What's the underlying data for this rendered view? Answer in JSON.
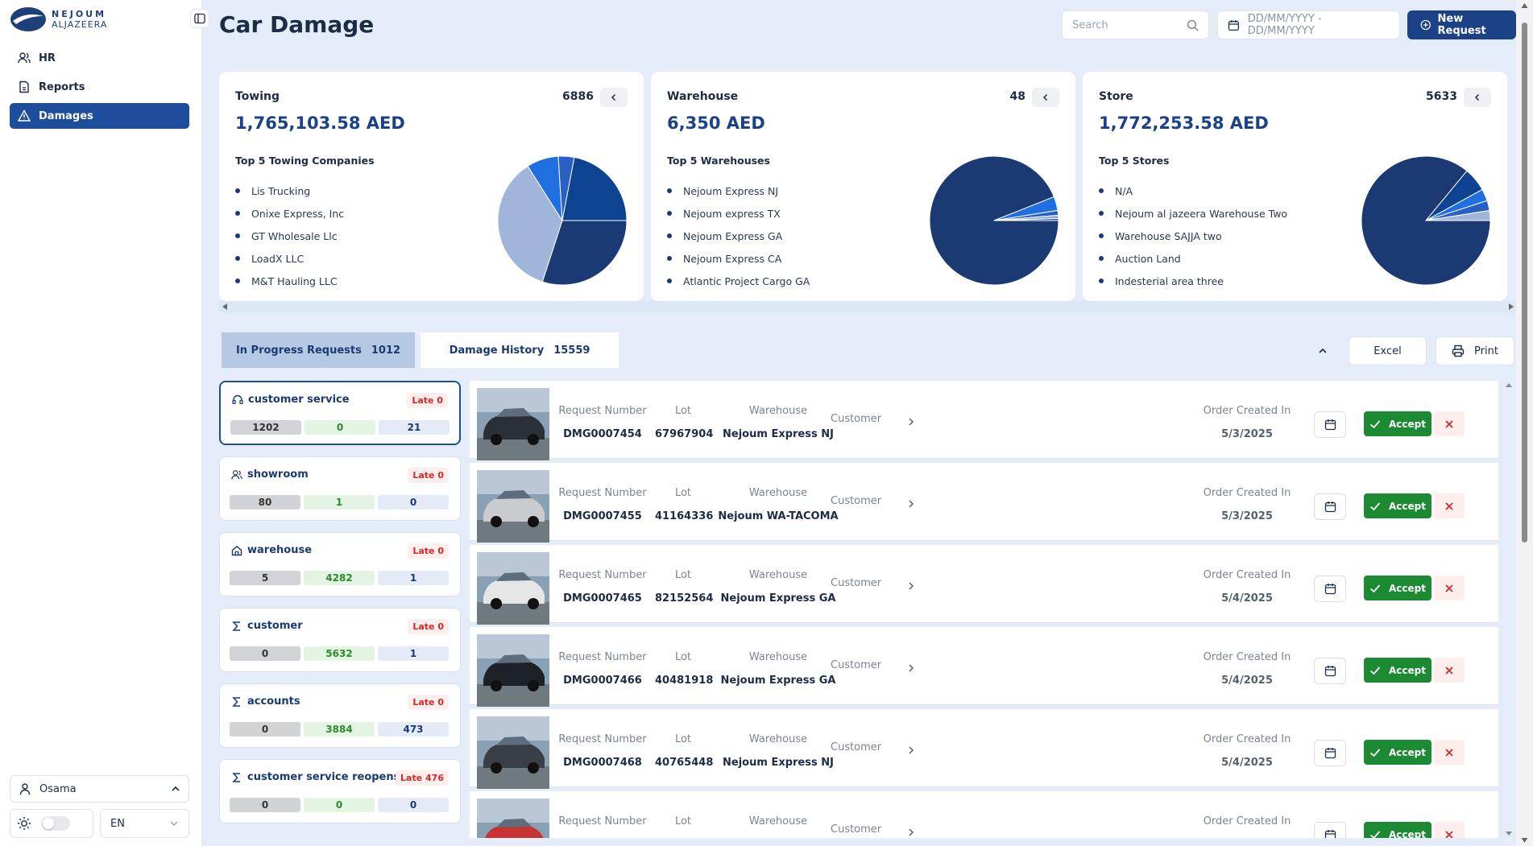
{
  "brand": {
    "line1": "NEJOUM",
    "line2": "ALJAZEERA"
  },
  "nav": [
    {
      "label": "HR",
      "icon": "users-icon"
    },
    {
      "label": "Reports",
      "icon": "report-icon"
    },
    {
      "label": "Damages",
      "icon": "warning-icon",
      "active": true
    }
  ],
  "user": {
    "name": "Osama"
  },
  "language": "EN",
  "header": {
    "title": "Car Damage",
    "search_placeholder": "Search",
    "date_placeholder": "DD/MM/YYYY - DD/MM/YYYY",
    "new_request": "New Request"
  },
  "cards": [
    {
      "title": "Towing",
      "count": "6886",
      "amount": "1,765,103.58 AED",
      "subtitle": "Top 5 Towing Companies",
      "items": [
        "Lis Trucking",
        "Onixe Express, Inc",
        "GT Wholesale Llc",
        "LoadX LLC",
        "M&T Hauling LLC"
      ]
    },
    {
      "title": "Warehouse",
      "count": "48",
      "amount": "6,350 AED",
      "subtitle": "Top 5 Warehouses",
      "items": [
        "Nejoum Express NJ",
        "Nejoum express TX",
        "Nejoum Express GA",
        "Nejoum Express CA",
        "Atlantic Project Cargo GA"
      ]
    },
    {
      "title": "Store",
      "count": "5633",
      "amount": "1,772,253.58 AED",
      "subtitle": "Top 5 Stores",
      "items": [
        "N/A",
        "Nejoum al jazeera Warehouse Two",
        "Warehouse SAJJA two",
        "Auction Land",
        "Indesterial area three"
      ]
    }
  ],
  "chart_data": [
    {
      "type": "pie",
      "title": "Top 5 Towing Companies",
      "labels": [
        "Lis Trucking",
        "Onixe Express, Inc",
        "GT Wholesale Llc",
        "LoadX LLC",
        "M&T Hauling LLC"
      ],
      "values": [
        30,
        36,
        8,
        4,
        22
      ],
      "colors": [
        "#1b3a73",
        "#9fb5d9",
        "#1f6fe0",
        "#2a5fc4",
        "#0e4391"
      ]
    },
    {
      "title": "Top 5 Warehouses",
      "type": "pie",
      "labels": [
        "Nejoum Express NJ",
        "Nejoum express TX",
        "Nejoum Express GA",
        "Nejoum Express CA",
        "Atlantic Project Cargo GA"
      ],
      "values": [
        94,
        3.5,
        1.2,
        0.8,
        0.5
      ],
      "colors": [
        "#1b3a73",
        "#1f6fe0",
        "#2a5fc4",
        "#8fa9d6",
        "#0e4391"
      ]
    },
    {
      "type": "pie",
      "title": "Top 5 Stores",
      "labels": [
        "N/A",
        "Nejoum al jazeera Warehouse Two",
        "Warehouse SAJJA two",
        "Auction Land",
        "Indesterial area three"
      ],
      "values": [
        86,
        6,
        3,
        2.5,
        2.5
      ],
      "colors": [
        "#1b3a73",
        "#0e4391",
        "#1f6fe0",
        "#2a5fc4",
        "#9fb5d9"
      ]
    }
  ],
  "tabs": [
    {
      "label": "In Progress Requests",
      "count": "1012"
    },
    {
      "label": "Damage History",
      "count": "15559"
    }
  ],
  "actions": {
    "excel": "Excel",
    "print": "Print"
  },
  "departments": [
    {
      "name": "customer service",
      "icon": "headset-icon",
      "late": "Late 0",
      "stats": [
        "1202",
        "0",
        "21"
      ],
      "active": true
    },
    {
      "name": "showroom",
      "icon": "users-icon",
      "late": "Late 0",
      "stats": [
        "80",
        "1",
        "0"
      ]
    },
    {
      "name": "warehouse",
      "icon": "home-icon",
      "late": "Late 0",
      "stats": [
        "5",
        "4282",
        "1"
      ]
    },
    {
      "name": "customer",
      "icon": "sigma-icon",
      "late": "Late 0",
      "stats": [
        "0",
        "5632",
        "1"
      ]
    },
    {
      "name": "accounts",
      "icon": "sigma-icon",
      "late": "Late 0",
      "stats": [
        "0",
        "3884",
        "473"
      ]
    },
    {
      "name": "customer service reopens",
      "icon": "sigma-icon",
      "late": "Late 476",
      "stats": [
        "0",
        "0",
        "0"
      ]
    }
  ],
  "row_labels": {
    "request": "Request Number",
    "lot": "Lot",
    "warehouse": "Warehouse",
    "customer": "Customer",
    "order": "Order Created In",
    "accept": "Accept"
  },
  "requests": [
    {
      "request": "DMG0007454",
      "lot": "67967904",
      "warehouse": "Nejoum Express NJ",
      "date": "5/3/2025"
    },
    {
      "request": "DMG0007455",
      "lot": "41164336",
      "warehouse": "Nejoum WA-TACOMA",
      "date": "5/3/2025"
    },
    {
      "request": "DMG0007465",
      "lot": "82152564",
      "warehouse": "Nejoum Express GA",
      "date": "5/4/2025"
    },
    {
      "request": "DMG0007466",
      "lot": "40481918",
      "warehouse": "Nejoum Express GA",
      "date": "5/4/2025"
    },
    {
      "request": "DMG0007468",
      "lot": "40765448",
      "warehouse": "Nejoum Express NJ",
      "date": "5/4/2025"
    },
    {
      "request": "",
      "lot": "",
      "warehouse": "",
      "date": ""
    }
  ]
}
